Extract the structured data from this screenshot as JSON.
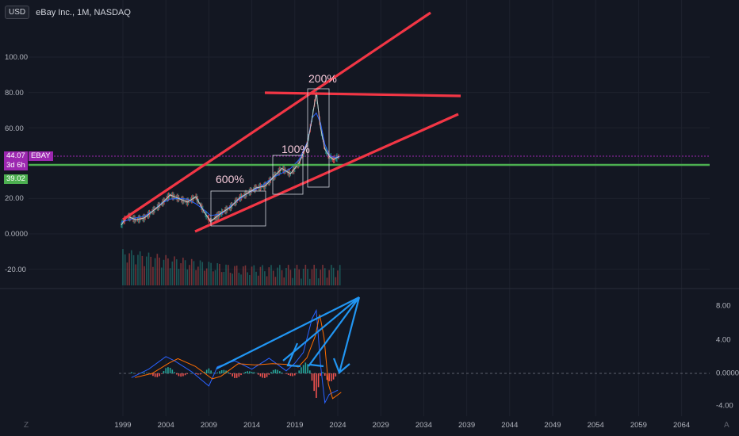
{
  "header": {
    "currency": "USD",
    "symbol_line": "eBay Inc., 1M, NASDAQ"
  },
  "price_axis": [
    "100.00",
    "80.00",
    "60.00",
    "20.00",
    "0.0000",
    "-20.00"
  ],
  "price_tags": {
    "last": "44.07",
    "ticker": "EBAY",
    "countdown": "3d 6h",
    "line": "39.02"
  },
  "osc_axis": [
    "8.00",
    "4.00",
    "0.0000",
    "-4.00"
  ],
  "time_axis": [
    "1999",
    "2004",
    "2009",
    "2014",
    "2019",
    "2024",
    "2029",
    "2034",
    "2039",
    "2044",
    "2049",
    "2054",
    "2059",
    "2064"
  ],
  "annotations": {
    "a600": "600%",
    "a100": "100%",
    "a200": "200%"
  },
  "corner": {
    "left": "Z",
    "right": "A"
  },
  "colors": {
    "bg": "#131722",
    "red_trend": "#f23645",
    "green_line": "#4caf50",
    "price_line": "#9c27b0",
    "arrow": "#2196f3"
  },
  "chart_data": {
    "type": "line",
    "title": "eBay Inc., 1M, NASDAQ",
    "x_range": [
      1998,
      2067
    ],
    "y_range": [
      -25,
      110
    ],
    "price": {
      "x": [
        1998.8,
        1999.5,
        2000.5,
        2001.5,
        2002.5,
        2003.5,
        2004.5,
        2005.5,
        2006.5,
        2007.5,
        2008.5,
        2009.2,
        2010.5,
        2011.5,
        2012.5,
        2013.5,
        2014.5,
        2015.5,
        2016.5,
        2017.5,
        2018.5,
        2019.5,
        2020.5,
        2021.0,
        2021.5,
        2022.0,
        2022.5,
        2023.0,
        2023.5,
        2024.2
      ],
      "y": [
        5,
        10,
        8,
        9,
        13,
        17,
        22,
        20,
        18,
        21,
        12,
        7,
        12,
        15,
        20,
        23,
        26,
        27,
        32,
        37,
        34,
        40,
        52,
        65,
        80,
        60,
        48,
        44,
        42,
        44
      ]
    },
    "last_price": 44.07,
    "horizontal_level": 39.02,
    "annotations": [
      "600%",
      "100%",
      "200%"
    ],
    "oscillator": {
      "x": [
        2000,
        2002,
        2004,
        2005,
        2007,
        2009,
        2010,
        2012,
        2014,
        2016,
        2018,
        2019,
        2020,
        2021,
        2021.5,
        2022,
        2022.5,
        2023,
        2024
      ],
      "y": [
        -0.5,
        0.5,
        2.0,
        1.5,
        0.2,
        -1.5,
        0.8,
        1.5,
        0.5,
        1.8,
        0.3,
        1.2,
        2.5,
        6.5,
        7.5,
        1.0,
        -3.5,
        -2.5,
        -2.0
      ]
    },
    "osc_range": [
      -5,
      10
    ]
  }
}
